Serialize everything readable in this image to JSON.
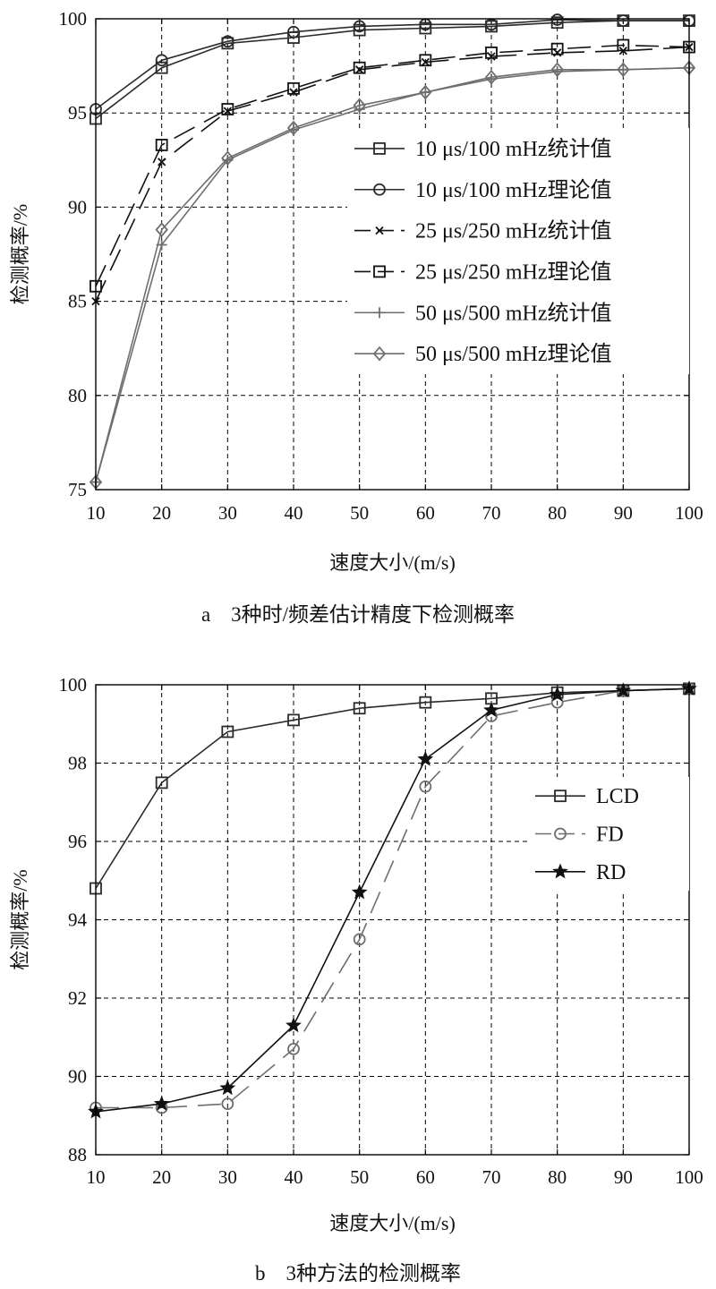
{
  "chart_data": [
    {
      "type": "line",
      "caption": "a　3种时/频差估计精度下检测概率",
      "xlabel": "速度大小/(m/s)",
      "ylabel": "检测概率/%",
      "xlim": [
        10,
        100
      ],
      "ylim": [
        75,
        100
      ],
      "xticks": [
        "10",
        "20",
        "30",
        "40",
        "50",
        "60",
        "70",
        "80",
        "90",
        "100"
      ],
      "yticks": [
        "75",
        "80",
        "85",
        "90",
        "95",
        "100"
      ],
      "grid": true,
      "legend_position": "right-center",
      "x": [
        10,
        20,
        30,
        40,
        50,
        60,
        70,
        80,
        90,
        100
      ],
      "series": [
        {
          "name": "10 μs/100 mHz统计值",
          "color": "#2b2b2b",
          "dash": "solid",
          "marker": "square",
          "values": [
            94.7,
            97.4,
            98.7,
            99.0,
            99.4,
            99.5,
            99.6,
            99.8,
            99.9,
            99.9
          ]
        },
        {
          "name": "10 μs/100 mHz理论值",
          "color": "#2b2b2b",
          "dash": "solid",
          "marker": "circle",
          "values": [
            95.2,
            97.8,
            98.8,
            99.3,
            99.6,
            99.7,
            99.7,
            99.95,
            99.9,
            99.9
          ]
        },
        {
          "name": "25 μs/250 mHz统计值",
          "color": "#111111",
          "dash": "long",
          "marker": "x",
          "values": [
            85.0,
            92.4,
            95.1,
            96.1,
            97.3,
            97.7,
            98.0,
            98.2,
            98.3,
            98.5
          ]
        },
        {
          "name": "25 μs/250 mHz理论值",
          "color": "#111111",
          "dash": "long",
          "marker": "square",
          "values": [
            85.8,
            93.3,
            95.2,
            96.3,
            97.4,
            97.8,
            98.2,
            98.4,
            98.6,
            98.5
          ]
        },
        {
          "name": "50 μs/500 mHz统计值",
          "color": "#6e6e6e",
          "dash": "solid",
          "marker": "plus",
          "values": [
            75.4,
            88.0,
            92.5,
            94.1,
            95.2,
            96.1,
            96.8,
            97.2,
            97.3,
            97.4
          ]
        },
        {
          "name": "50 μs/500 mHz理论值",
          "color": "#6e6e6e",
          "dash": "solid",
          "marker": "diamond",
          "values": [
            75.4,
            88.8,
            92.6,
            94.2,
            95.4,
            96.1,
            96.9,
            97.3,
            97.3,
            97.4
          ]
        }
      ]
    },
    {
      "type": "line",
      "caption": "b　3种方法的检测概率",
      "xlabel": "速度大小/(m/s)",
      "ylabel": "检测概率/%",
      "xlim": [
        10,
        100
      ],
      "ylim": [
        88,
        100
      ],
      "xticks": [
        "10",
        "20",
        "30",
        "40",
        "50",
        "60",
        "70",
        "80",
        "90",
        "100"
      ],
      "yticks": [
        "88",
        "90",
        "92",
        "94",
        "96",
        "98",
        "100"
      ],
      "grid": true,
      "legend_position": "right-center",
      "x": [
        10,
        20,
        30,
        40,
        50,
        60,
        70,
        80,
        90,
        100
      ],
      "series": [
        {
          "name": "LCD",
          "color": "#2b2b2b",
          "dash": "solid",
          "marker": "square",
          "values": [
            94.8,
            97.5,
            98.8,
            99.1,
            99.4,
            99.55,
            99.65,
            99.8,
            99.85,
            99.9
          ]
        },
        {
          "name": "FD",
          "color": "#6e6e6e",
          "dash": "long",
          "marker": "circle",
          "values": [
            89.2,
            89.2,
            89.3,
            90.7,
            93.5,
            97.4,
            99.2,
            99.55,
            99.85,
            99.9
          ]
        },
        {
          "name": "RD",
          "color": "#111111",
          "dash": "solid",
          "marker": "star",
          "values": [
            89.1,
            89.3,
            89.7,
            91.3,
            94.7,
            98.1,
            99.35,
            99.75,
            99.85,
            99.9
          ]
        }
      ]
    }
  ]
}
